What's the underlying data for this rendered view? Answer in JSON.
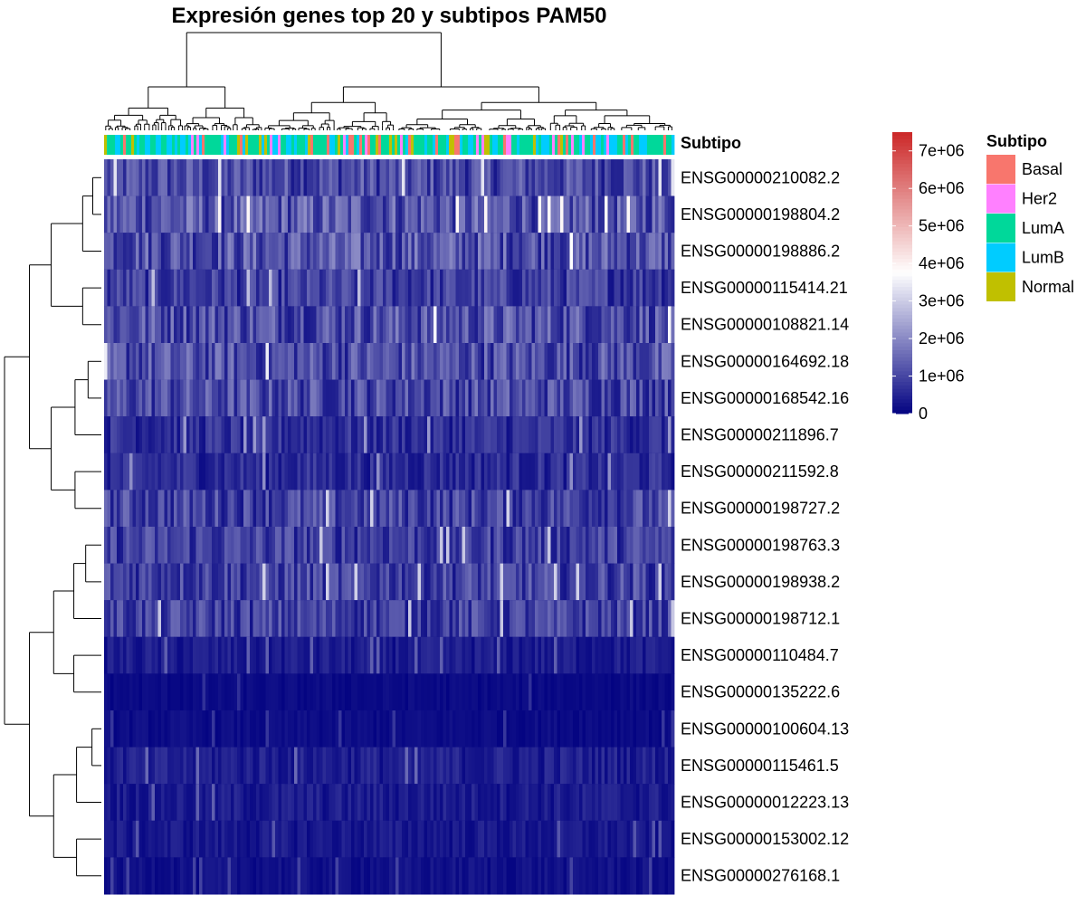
{
  "chart_data": {
    "type": "heatmap",
    "title": "Expresión genes top 20 y subtipos PAM50",
    "annotation": {
      "name": "Subtipo",
      "levels": [
        "Basal",
        "Her2",
        "LumA",
        "LumB",
        "Normal"
      ],
      "colors": {
        "Basal": "#F8766D",
        "Her2": "#FF80FF",
        "LumA": "#00D89A",
        "LumB": "#00CCFF",
        "Normal": "#C0C000"
      }
    },
    "genes": [
      "ENSG00000210082.2",
      "ENSG00000198804.2",
      "ENSG00000198886.2",
      "ENSG00000115414.21",
      "ENSG00000108821.14",
      "ENSG00000164692.18",
      "ENSG00000168542.16",
      "ENSG00000211896.7",
      "ENSG00000211592.8",
      "ENSG00000198727.2",
      "ENSG00000198763.3",
      "ENSG00000198938.2",
      "ENSG00000198712.1",
      "ENSG00000110484.7",
      "ENSG00000135222.6",
      "ENSG00000100604.13",
      "ENSG00000115461.5",
      "ENSG00000012223.13",
      "ENSG00000153002.12",
      "ENSG00000276168.1"
    ],
    "row_mean_expression": [
      1100000,
      1300000,
      1250000,
      900000,
      1200000,
      1150000,
      1100000,
      700000,
      650000,
      1000000,
      950000,
      1000000,
      950000,
      400000,
      150000,
      180000,
      450000,
      400000,
      350000,
      250000
    ],
    "color_scale": {
      "min": 0,
      "mid": 3800000,
      "max": 7500000,
      "low_color": "#000080",
      "mid_color": "#FFFFFF",
      "high_color": "#CC2A2A",
      "ticks": [
        0,
        1000000,
        2000000,
        3000000,
        4000000,
        5000000,
        6000000,
        7000000
      ],
      "tick_labels": [
        "0",
        "1e+06",
        "2e+06",
        "3e+06",
        "4e+06",
        "5e+06",
        "6e+06",
        "7e+06"
      ]
    },
    "row_dendrogram": true,
    "column_dendrogram": true,
    "legend_placement": "right"
  }
}
